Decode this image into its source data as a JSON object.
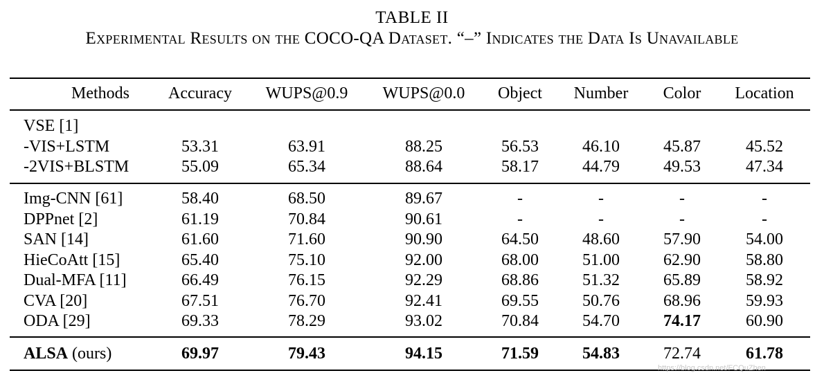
{
  "caption": {
    "label": "TABLE II",
    "title": "Experimental Results on the COCO-QA Dataset. “–” Indicates the Data Is Unavailable"
  },
  "table": {
    "headers": [
      "Methods",
      "Accuracy",
      "WUPS@0.9",
      "WUPS@0.0",
      "Object",
      "Number",
      "Color",
      "Location"
    ],
    "groups": [
      {
        "rows": [
          {
            "method": "VSE [1]",
            "values": [
              "",
              "",
              "",
              "",
              "",
              "",
              ""
            ]
          },
          {
            "method": "-VIS+LSTM",
            "values": [
              "53.31",
              "63.91",
              "88.25",
              "56.53",
              "46.10",
              "45.87",
              "45.52"
            ]
          },
          {
            "method": "-2VIS+BLSTM",
            "values": [
              "55.09",
              "65.34",
              "88.64",
              "58.17",
              "44.79",
              "49.53",
              "47.34"
            ]
          }
        ]
      },
      {
        "rows": [
          {
            "method": "Img-CNN [61]",
            "values": [
              "58.40",
              "68.50",
              "89.67",
              "-",
              "-",
              "-",
              "-"
            ]
          },
          {
            "method": "DPPnet [2]",
            "values": [
              "61.19",
              "70.84",
              "90.61",
              "-",
              "-",
              "-",
              "-"
            ]
          },
          {
            "method": "SAN [14]",
            "values": [
              "61.60",
              "71.60",
              "90.90",
              "64.50",
              "48.60",
              "57.90",
              "54.00"
            ]
          },
          {
            "method": "HieCoAtt [15]",
            "values": [
              "65.40",
              "75.10",
              "92.00",
              "68.00",
              "51.00",
              "62.90",
              "58.80"
            ]
          },
          {
            "method": "Dual-MFA [11]",
            "values": [
              "66.49",
              "76.15",
              "92.29",
              "68.86",
              "51.32",
              "65.89",
              "58.92"
            ]
          },
          {
            "method": "CVA [20]",
            "values": [
              "67.51",
              "76.70",
              "92.41",
              "69.55",
              "50.76",
              "68.96",
              "59.93"
            ]
          },
          {
            "method": "ODA [29]",
            "values": [
              "69.33",
              "78.29",
              "93.02",
              "70.84",
              "54.70",
              "74.17",
              "60.90"
            ]
          }
        ]
      },
      {
        "rows": [
          {
            "method_bold": "ALSA",
            "method_rest": " (ours)",
            "values": [
              "69.97",
              "79.43",
              "94.15",
              "71.59",
              "54.83",
              "72.74",
              "61.78"
            ]
          }
        ]
      }
    ]
  },
  "watermark": "https://blog.csdn.net/FCQuZhen"
}
